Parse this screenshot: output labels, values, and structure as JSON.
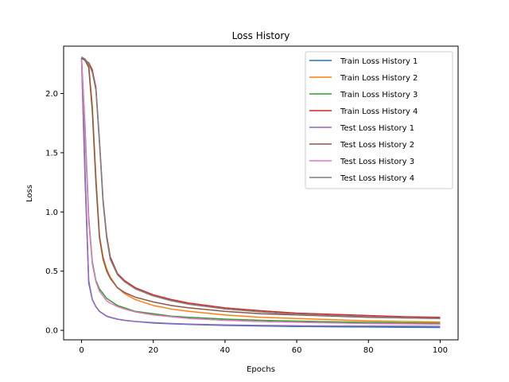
{
  "chart_data": {
    "type": "line",
    "title": "Loss History",
    "xlabel": "Epochs",
    "ylabel": "Loss",
    "xlim": [
      -5,
      105
    ],
    "ylim": [
      -0.08,
      2.4
    ],
    "xticks": [
      0,
      20,
      40,
      60,
      80,
      100
    ],
    "yticks": [
      0.0,
      0.5,
      1.0,
      1.5,
      2.0
    ],
    "xtick_labels": [
      "0",
      "20",
      "40",
      "60",
      "80",
      "100"
    ],
    "ytick_labels": [
      "0.0",
      "0.5",
      "1.0",
      "1.5",
      "2.0"
    ],
    "grid": false,
    "legend_position": "top-right",
    "x": [
      0,
      1,
      2,
      3,
      4,
      5,
      6,
      7,
      8,
      10,
      12,
      15,
      20,
      25,
      30,
      40,
      50,
      60,
      70,
      80,
      90,
      100
    ],
    "series": [
      {
        "name": "Train Loss History 1",
        "color": "#1f77b4",
        "values": [
          2.3,
          1.3,
          0.4,
          0.26,
          0.2,
          0.16,
          0.14,
          0.12,
          0.11,
          0.095,
          0.085,
          0.075,
          0.062,
          0.055,
          0.05,
          0.042,
          0.037,
          0.033,
          0.03,
          0.028,
          0.026,
          0.024
        ]
      },
      {
        "name": "Train Loss History 2",
        "color": "#ff7f0e",
        "values": [
          2.3,
          2.29,
          2.24,
          1.9,
          1.3,
          0.8,
          0.62,
          0.52,
          0.45,
          0.36,
          0.31,
          0.26,
          0.21,
          0.18,
          0.16,
          0.13,
          0.11,
          0.1,
          0.09,
          0.08,
          0.075,
          0.07
        ]
      },
      {
        "name": "Train Loss History 3",
        "color": "#2ca02c",
        "values": [
          2.3,
          1.7,
          0.95,
          0.58,
          0.42,
          0.35,
          0.31,
          0.27,
          0.25,
          0.21,
          0.19,
          0.16,
          0.14,
          0.12,
          0.11,
          0.095,
          0.085,
          0.078,
          0.072,
          0.067,
          0.063,
          0.06
        ]
      },
      {
        "name": "Train Loss History 4",
        "color": "#d62728",
        "values": [
          2.3,
          2.28,
          2.26,
          2.2,
          2.05,
          1.6,
          1.1,
          0.8,
          0.62,
          0.48,
          0.42,
          0.36,
          0.3,
          0.26,
          0.23,
          0.19,
          0.165,
          0.145,
          0.135,
          0.125,
          0.115,
          0.11
        ]
      },
      {
        "name": "Test Loss History 1",
        "color": "#9467bd",
        "values": [
          2.28,
          1.25,
          0.42,
          0.26,
          0.2,
          0.16,
          0.14,
          0.12,
          0.11,
          0.095,
          0.085,
          0.075,
          0.065,
          0.058,
          0.053,
          0.046,
          0.042,
          0.039,
          0.037,
          0.036,
          0.035,
          0.034
        ]
      },
      {
        "name": "Test Loss History 2",
        "color": "#8c564b",
        "values": [
          2.3,
          2.28,
          2.22,
          1.85,
          1.25,
          0.78,
          0.6,
          0.5,
          0.44,
          0.36,
          0.32,
          0.28,
          0.24,
          0.21,
          0.19,
          0.16,
          0.14,
          0.13,
          0.12,
          0.11,
          0.105,
          0.1
        ]
      },
      {
        "name": "Test Loss History 3",
        "color": "#e377c2",
        "values": [
          2.29,
          1.65,
          0.92,
          0.56,
          0.41,
          0.33,
          0.29,
          0.25,
          0.23,
          0.2,
          0.18,
          0.155,
          0.13,
          0.115,
          0.1,
          0.085,
          0.075,
          0.068,
          0.063,
          0.058,
          0.055,
          0.052
        ]
      },
      {
        "name": "Test Loss History 4",
        "color": "#7f7f7f",
        "values": [
          2.31,
          2.29,
          2.25,
          2.18,
          2.03,
          1.58,
          1.08,
          0.78,
          0.6,
          0.47,
          0.41,
          0.35,
          0.29,
          0.25,
          0.22,
          0.18,
          0.155,
          0.135,
          0.125,
          0.115,
          0.105,
          0.1
        ]
      }
    ]
  }
}
